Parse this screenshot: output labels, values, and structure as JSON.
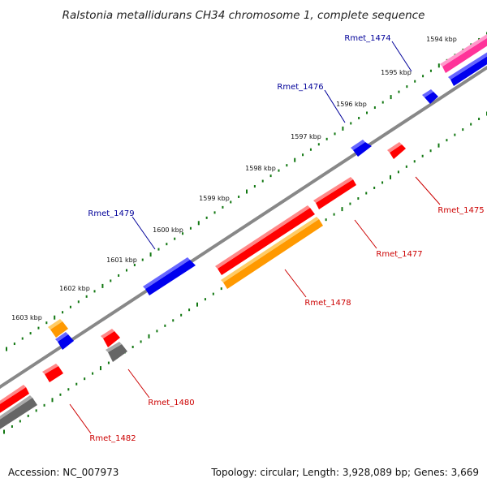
{
  "title": "Ralstonia metallidurans CH34 chromosome 1, complete sequence",
  "ticks": [
    "1594 kbp",
    "1595 kbp",
    "1596 kbp",
    "1597 kbp",
    "1598 kbp",
    "1599 kbp",
    "1600 kbp",
    "1601 kbp",
    "1602 kbp",
    "1603 kbp"
  ],
  "labels": {
    "forward": [
      "Rmet_1474",
      "Rmet_1476",
      "Rmet_1479"
    ],
    "reverse": [
      "Rmet_1475",
      "Rmet_1477",
      "Rmet_1478",
      "Rmet_1480",
      "Rmet_1482"
    ]
  },
  "colors": {
    "red": "#ff0000",
    "blue": "#0000ee",
    "orange": "#ff9900",
    "gray": "#666666",
    "magenta": "#ff3399",
    "backbone": "#888888",
    "ticks": "#117711",
    "forward_label": "#000099",
    "reverse_label": "#cc0000"
  },
  "footer": {
    "accession": "Accession: NC_007973",
    "topology": "Topology: circular; Length: 3,928,089 bp; Genes: 3,669"
  }
}
